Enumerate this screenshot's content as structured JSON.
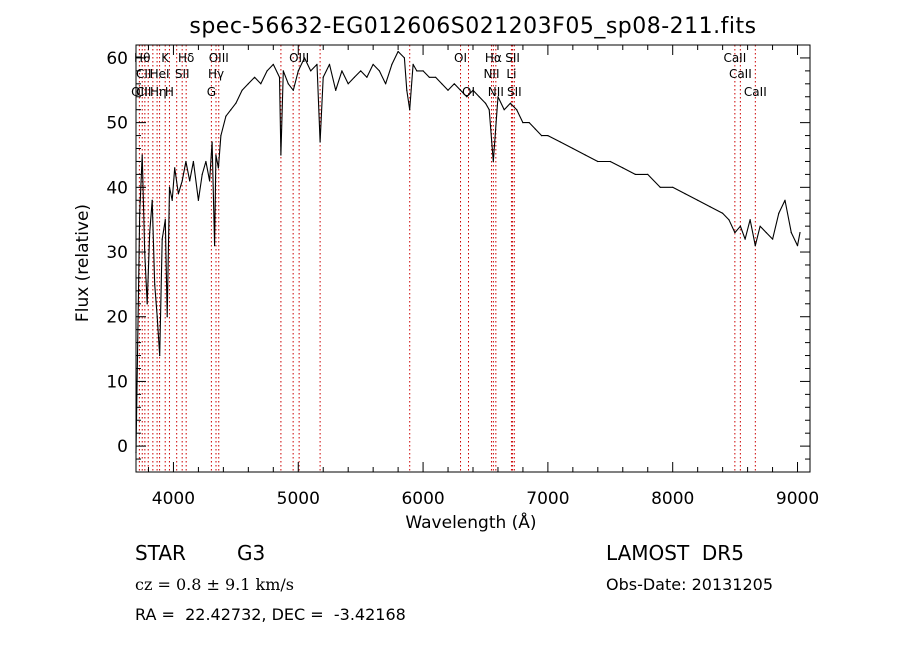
{
  "chart_data": {
    "type": "line",
    "title": "spec-56632-EG012606S021203F05_sp08-211.fits",
    "xlabel": "Wavelength (Å)",
    "ylabel": "Flux (relative)",
    "xlim": [
      3700,
      9100
    ],
    "ylim": [
      -4,
      62
    ],
    "xticks": [
      4000,
      5000,
      6000,
      7000,
      8000,
      9000
    ],
    "yticks": [
      0,
      10,
      20,
      30,
      40,
      50,
      60
    ],
    "grid": false,
    "line_color": "#000000",
    "marker_color": "#cc0000",
    "series": [
      {
        "name": "",
        "x": [
          3700,
          3730,
          3750,
          3770,
          3790,
          3810,
          3830,
          3850,
          3870,
          3890,
          3910,
          3935,
          3950,
          3968,
          3990,
          4010,
          4040,
          4070,
          4100,
          4130,
          4160,
          4200,
          4230,
          4260,
          4290,
          4310,
          4330,
          4340,
          4360,
          4380,
          4420,
          4460,
          4500,
          4550,
          4600,
          4650,
          4700,
          4750,
          4800,
          4850,
          4861,
          4880,
          4920,
          4960,
          5000,
          5050,
          5100,
          5150,
          5175,
          5200,
          5250,
          5300,
          5350,
          5400,
          5450,
          5500,
          5550,
          5600,
          5650,
          5700,
          5750,
          5800,
          5850,
          5870,
          5893,
          5920,
          5950,
          6000,
          6050,
          6100,
          6150,
          6200,
          6250,
          6300,
          6350,
          6400,
          6450,
          6500,
          6530,
          6563,
          6600,
          6650,
          6700,
          6750,
          6800,
          6850,
          6900,
          6950,
          7000,
          7100,
          7200,
          7300,
          7400,
          7500,
          7600,
          7700,
          7800,
          7900,
          8000,
          8100,
          8200,
          8300,
          8400,
          8450,
          8498,
          8542,
          8580,
          8620,
          8662,
          8700,
          8750,
          8800,
          8850,
          8900,
          8950,
          9000,
          9020
        ],
        "values": [
          -1,
          36,
          45,
          30,
          22,
          33,
          38,
          25,
          20,
          14,
          32,
          35,
          20,
          40,
          38,
          43,
          39,
          41,
          44,
          41,
          44,
          38,
          42,
          44,
          41,
          47,
          31,
          45,
          43,
          48,
          51,
          52,
          53,
          55,
          56,
          57,
          56,
          58,
          59,
          57,
          45,
          58,
          56,
          55,
          58,
          60,
          58,
          59,
          47,
          57,
          59,
          55,
          58,
          56,
          57,
          58,
          57,
          59,
          58,
          56,
          59,
          61,
          60,
          55,
          52,
          59,
          58,
          58,
          57,
          57,
          56,
          55,
          56,
          55,
          54,
          55,
          54,
          53,
          52,
          44,
          54,
          52,
          53,
          52,
          50,
          50,
          49,
          48,
          48,
          47,
          46,
          45,
          44,
          44,
          43,
          42,
          42,
          40,
          40,
          39,
          38,
          37,
          36,
          35,
          33,
          34,
          32,
          35,
          31,
          34,
          33,
          32,
          36,
          38,
          33,
          31,
          33
        ]
      }
    ],
    "line_markers": [
      {
        "x": 3727,
        "label": "OII",
        "row": 3
      },
      {
        "x": 3750,
        "label": "Hθ",
        "row": 1
      },
      {
        "x": 3771,
        "label": "",
        "row": 0
      },
      {
        "x": 3798,
        "label": "",
        "row": 0
      },
      {
        "x": 3835,
        "label": "",
        "row": 0
      },
      {
        "x": 3869,
        "label": "",
        "row": 0
      },
      {
        "x": 3889,
        "label": "HeI",
        "row": 2
      },
      {
        "x": 3934,
        "label": "K",
        "row": 1
      },
      {
        "x": 3968,
        "label": "H",
        "row": 3
      },
      {
        "x": 4026,
        "label": "",
        "row": 0
      },
      {
        "x": 4102,
        "label": "Hδ",
        "row": 1
      },
      {
        "x": 4070,
        "label": "SII",
        "row": 2
      },
      {
        "x": 4304,
        "label": "G",
        "row": 3
      },
      {
        "x": 4341,
        "label": "Hγ",
        "row": 2
      },
      {
        "x": 4363,
        "label": "OIII",
        "row": 1
      },
      {
        "x": 4861,
        "label": "",
        "row": 0
      },
      {
        "x": 4959,
        "label": "",
        "row": 0
      },
      {
        "x": 5007,
        "label": "OIII",
        "row": 1
      },
      {
        "x": 5175,
        "label": "",
        "row": 0
      },
      {
        "x": 5893,
        "label": "",
        "row": 0
      },
      {
        "x": 6300,
        "label": "OI",
        "row": 1
      },
      {
        "x": 6364,
        "label": "OI",
        "row": 3
      },
      {
        "x": 6548,
        "label": "NII",
        "row": 2
      },
      {
        "x": 6563,
        "label": "Hα",
        "row": 1
      },
      {
        "x": 6583,
        "label": "NII",
        "row": 3
      },
      {
        "x": 6708,
        "label": "Li",
        "row": 2
      },
      {
        "x": 6717,
        "label": "SII",
        "row": 1
      },
      {
        "x": 6731,
        "label": "SII",
        "row": 3
      },
      {
        "x": 8498,
        "label": "CaII",
        "row": 1
      },
      {
        "x": 8542,
        "label": "CaII",
        "row": 2
      },
      {
        "x": 8662,
        "label": "CaII",
        "row": 3
      }
    ],
    "stacked_labels": [
      {
        "label": "CII",
        "row": 2
      },
      {
        "label": "CII",
        "row": 3
      },
      {
        "label": "Hη",
        "row": 3
      }
    ]
  },
  "info": {
    "object_class": "STAR",
    "subclass": "G3",
    "survey": "LAMOST  DR5",
    "redshift": "cz = 0.8 ± 9.1 km/s",
    "obs_date": "Obs-Date: 20131205",
    "coords": "RA =  22.42732, DEC =  -3.42168"
  }
}
